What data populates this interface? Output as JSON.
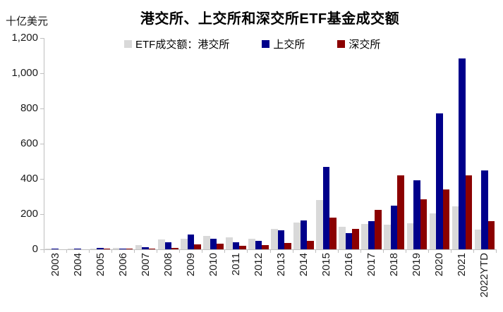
{
  "page": {
    "unit_label": "十亿美元"
  },
  "chart_data": {
    "type": "bar",
    "title": "港交所、上交所和深交所ETF基金成交额",
    "ylabel": "十亿美元",
    "xlabel": "",
    "grid": false,
    "legend_position": "top",
    "ylim": [
      0,
      1200
    ],
    "ytick_values": [
      0,
      200,
      400,
      600,
      800,
      1000,
      1200
    ],
    "ytick_labels": [
      "0",
      "200",
      "400",
      "600",
      "800",
      "1,000",
      "1,200"
    ],
    "categories": [
      "2003",
      "2004",
      "2005",
      "2006",
      "2007",
      "2008",
      "2009",
      "2010",
      "2011",
      "2012",
      "2013",
      "2014",
      "2015",
      "2016",
      "2017",
      "2018",
      "2019",
      "2020",
      "2021",
      "2022YTD"
    ],
    "series": [
      {
        "name": "ETF成交额：港交所",
        "color": "#D9D9D9",
        "values": [
          1,
          2,
          2,
          8,
          22,
          55,
          61,
          74,
          67,
          61,
          115,
          150,
          280,
          128,
          145,
          139,
          149,
          203,
          243,
          110
        ]
      },
      {
        "name": "上交所",
        "color": "#00008B",
        "values": [
          1,
          1,
          8,
          3,
          13,
          40,
          85,
          60,
          40,
          47,
          106,
          163,
          468,
          93,
          161,
          249,
          390,
          770,
          1085,
          449
        ]
      },
      {
        "name": "深交所",
        "color": "#8B0000",
        "values": [
          0,
          0,
          1,
          1,
          3,
          6,
          27,
          31,
          21,
          24,
          35,
          48,
          181,
          117,
          224,
          420,
          283,
          341,
          420,
          161
        ]
      }
    ],
    "axis_color": "#bfbfbf"
  }
}
